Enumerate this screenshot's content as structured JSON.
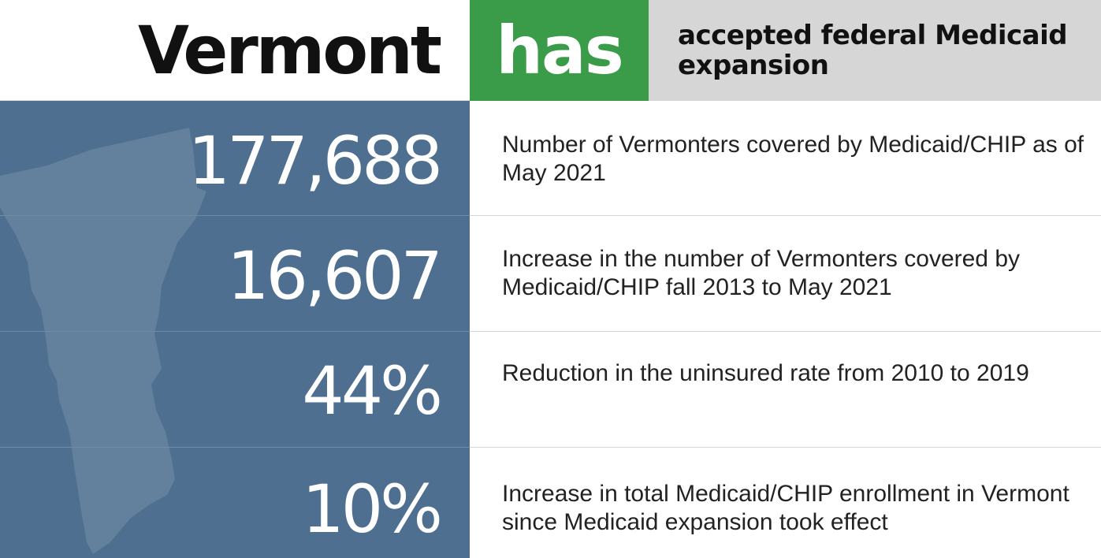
{
  "header": {
    "state": "Vermont",
    "status": "has",
    "description": "accepted federal Medicaid expansion"
  },
  "rows": [
    {
      "value": "177,688",
      "label": "Number of Vermonters covered by Medicaid/CHIP as of May 2021"
    },
    {
      "value": "16,607",
      "label": "Increase in the number of Vermonters covered by Medicaid/CHIP fall 2013 to May 2021"
    },
    {
      "value": "44%",
      "label": "Reduction in the uninsured rate from 2010 to 2019"
    },
    {
      "value": "10%",
      "label": "Increase in total Medicaid/CHIP enrollment in Vermont since Medicaid expansion took effect"
    }
  ],
  "colors": {
    "status_green": "#3a9b48",
    "panel_blue": "#4e6f8f",
    "header_gray": "#d6d6d6"
  },
  "icons": {
    "background": "vermont-map-silhouette"
  }
}
